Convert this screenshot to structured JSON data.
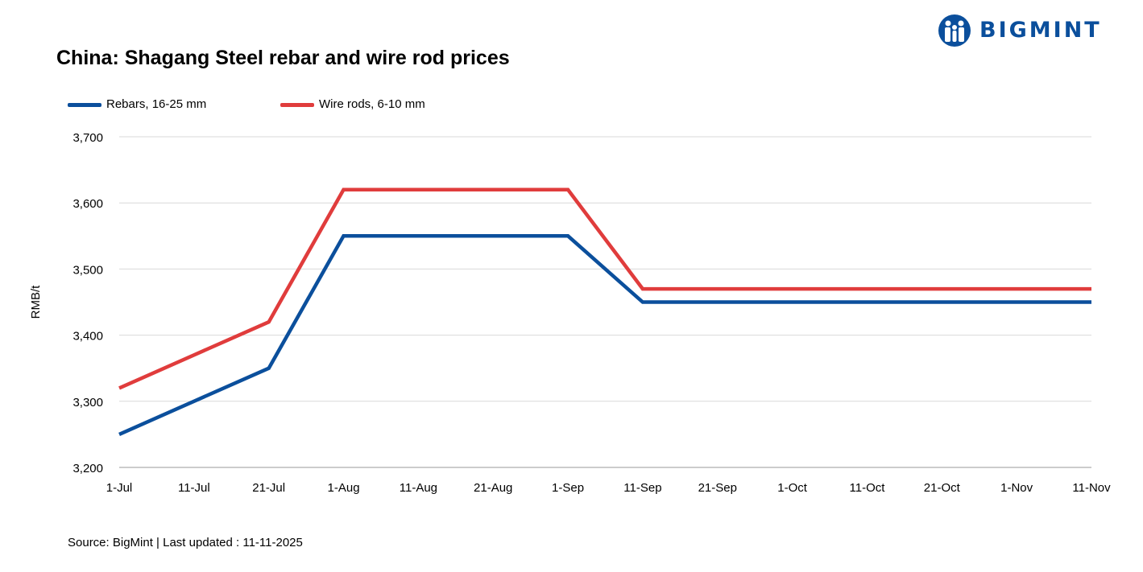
{
  "brand": {
    "name": "BIGMINT",
    "color": "#0b4f9c"
  },
  "chart_data": {
    "type": "line",
    "title": "China: Shagang Steel rebar and wire rod prices",
    "xlabel": "",
    "ylabel": "RMB/t",
    "ylim": [
      3200,
      3700
    ],
    "yticks": [
      "3,200",
      "3,300",
      "3,400",
      "3,500",
      "3,600",
      "3,700"
    ],
    "categories": [
      "1-Jul",
      "11-Jul",
      "21-Jul",
      "1-Aug",
      "11-Aug",
      "21-Aug",
      "1-Sep",
      "11-Sep",
      "21-Sep",
      "1-Oct",
      "11-Oct",
      "21-Oct",
      "1-Nov",
      "11-Nov"
    ],
    "grid": "horizontal",
    "legend_position": "top-left",
    "series": [
      {
        "name": "Rebars, 16-25 mm",
        "color": "#0b4f9c",
        "values": [
          3250,
          3300,
          3350,
          3550,
          3550,
          3550,
          3550,
          3450,
          3450,
          3450,
          3450,
          3450,
          3450,
          3450
        ]
      },
      {
        "name": "Wire rods, 6-10 mm",
        "color": "#e03c3c",
        "values": [
          3320,
          3370,
          3420,
          3620,
          3620,
          3620,
          3620,
          3470,
          3470,
          3470,
          3470,
          3470,
          3470,
          3470
        ]
      }
    ]
  },
  "footer": {
    "source": "Source: BigMint | Last updated : 11-11-2025"
  }
}
